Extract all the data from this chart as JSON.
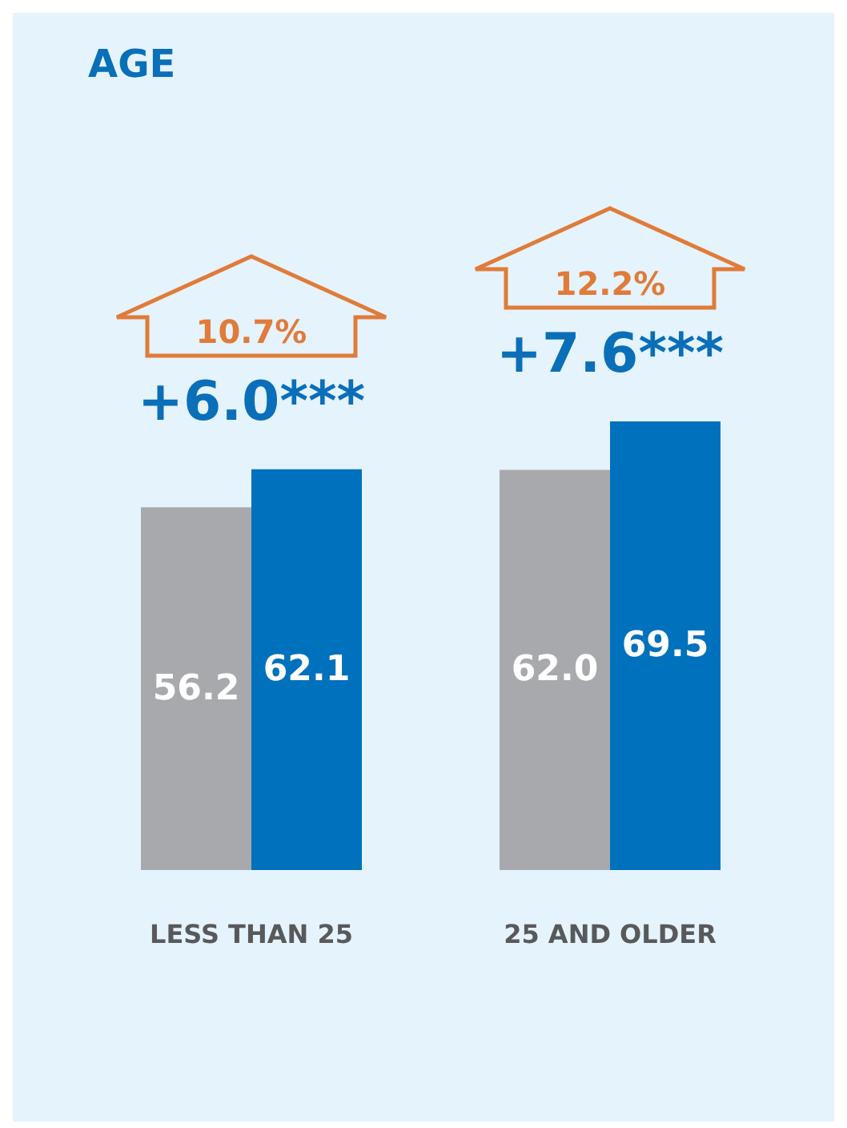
{
  "chart_data": {
    "type": "bar",
    "title": "AGE",
    "categories": [
      "LESS THAN 25",
      "25 AND OLDER"
    ],
    "series": [
      {
        "color": "#a7a9ac",
        "values": [
          56.2,
          62.0
        ],
        "value_labels": [
          "56.2",
          "62.0"
        ]
      },
      {
        "color": "#0071bc",
        "values": [
          62.1,
          69.5
        ],
        "value_labels": [
          "62.1",
          "69.5"
        ]
      }
    ],
    "legend": false,
    "grid": false,
    "annotations": [
      "10.7%",
      "+6.0***",
      "12.2%",
      "+7.6***"
    ]
  }
}
